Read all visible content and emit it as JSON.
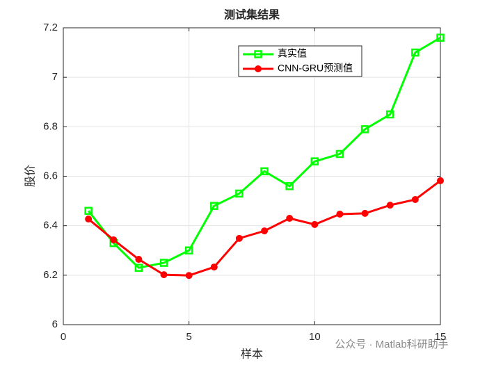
{
  "chart_data": {
    "type": "line",
    "title": "测试集结果",
    "xlabel": "样本",
    "ylabel": "股价",
    "x": [
      1,
      2,
      3,
      4,
      5,
      6,
      7,
      8,
      9,
      10,
      11,
      12,
      13,
      14,
      15
    ],
    "series": [
      {
        "name": "真实值",
        "color": "#00ff00",
        "marker": "square",
        "values": [
          6.46,
          6.33,
          6.23,
          6.25,
          6.3,
          6.48,
          6.53,
          6.62,
          6.56,
          6.66,
          6.69,
          6.79,
          6.85,
          7.1,
          7.16
        ]
      },
      {
        "name": "CNN-GRU预测值",
        "color": "#ff0000",
        "marker": "circle",
        "values": [
          6.427,
          6.343,
          6.264,
          6.202,
          6.199,
          6.233,
          6.349,
          6.379,
          6.43,
          6.405,
          6.447,
          6.45,
          6.483,
          6.506,
          6.582
        ]
      }
    ],
    "xlim": [
      0,
      15
    ],
    "xticks": [
      0,
      5,
      10,
      15
    ],
    "ylim": [
      6,
      7.2
    ],
    "yticks": [
      6,
      6.2,
      6.4,
      6.6,
      6.8,
      7,
      7.2
    ],
    "grid": true,
    "watermark": "公众号 · Matlab科研助手"
  }
}
